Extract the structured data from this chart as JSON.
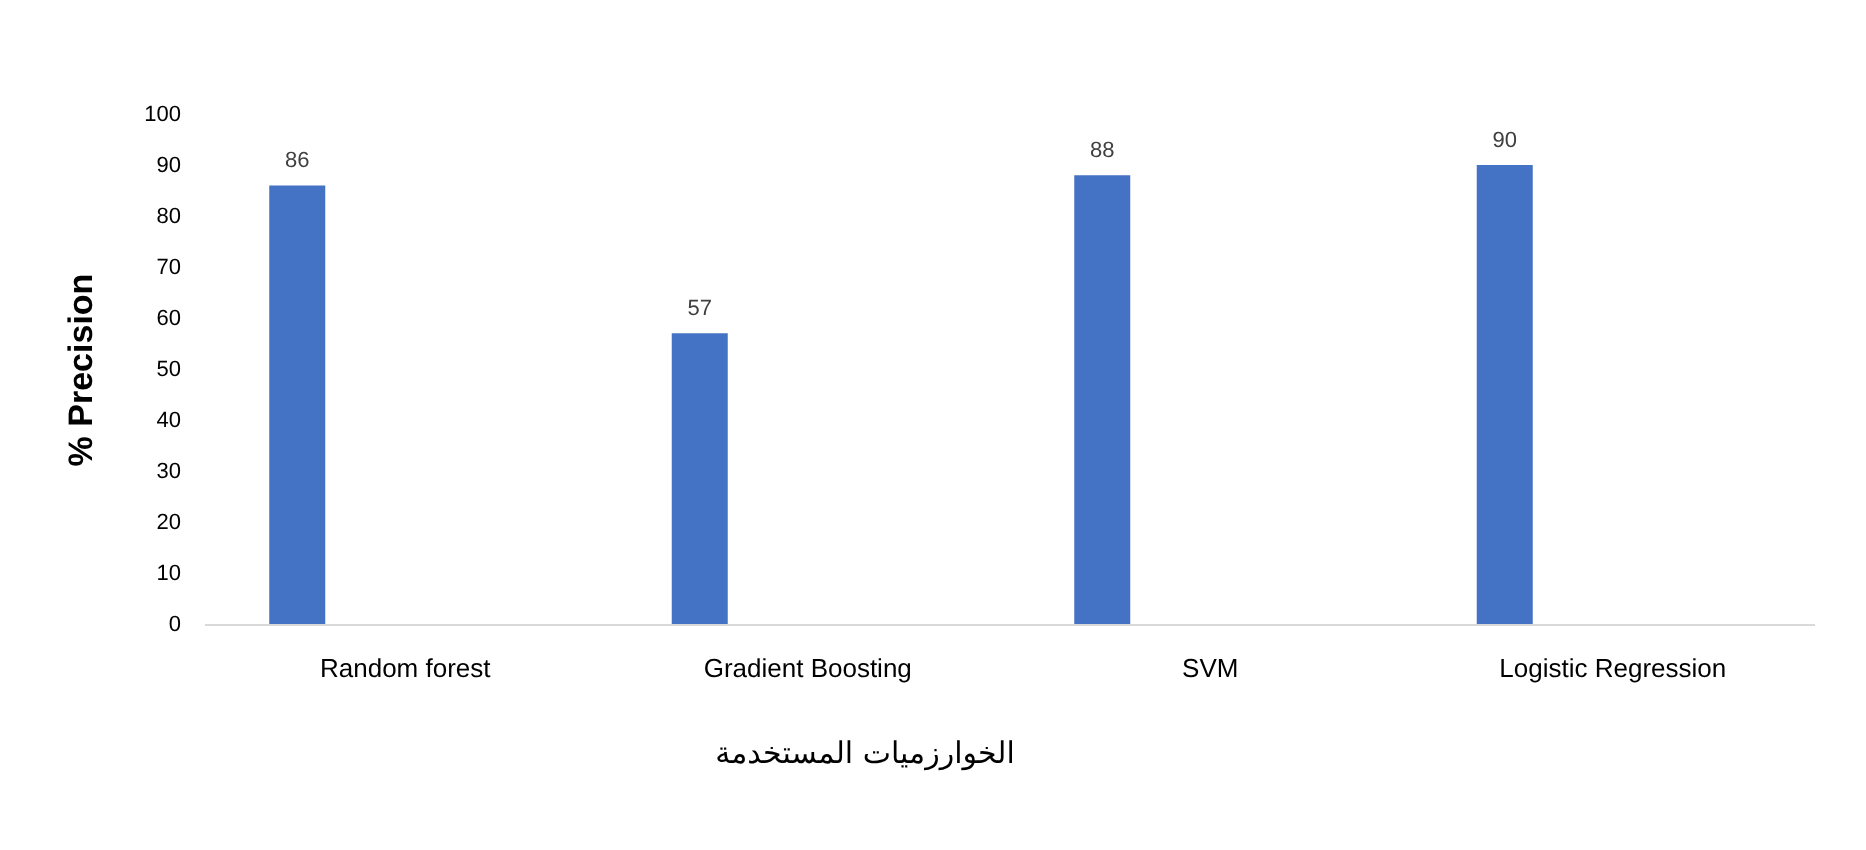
{
  "chart_data": {
    "type": "bar",
    "ylabel": "% Precision",
    "xlabel": "الخوارزميات المستخدمة",
    "categories": [
      "Random forest",
      "Gradient Boosting",
      "SVM",
      "Logistic Regression"
    ],
    "values": [
      86,
      57,
      88,
      90
    ],
    "color": "#4472c4",
    "data_labels": true,
    "ylim": [
      0,
      100
    ],
    "yticks": [
      0,
      10,
      20,
      30,
      40,
      50,
      60,
      70,
      80,
      90,
      100
    ],
    "grid": false
  }
}
